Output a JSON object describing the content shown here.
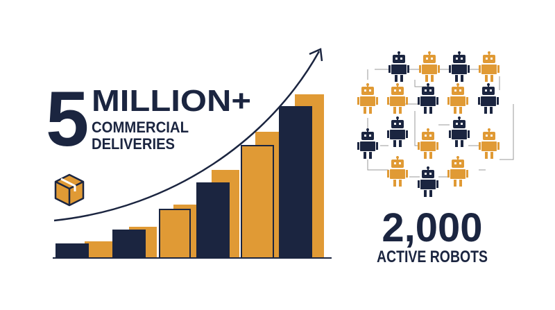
{
  "headline": {
    "number": "5",
    "unit": "MILLION+",
    "line1": "COMMERCIAL",
    "line2": "DELIVERIES"
  },
  "robots": {
    "number": "2,000",
    "label": "ACTIVE ROBOTS"
  }
}
